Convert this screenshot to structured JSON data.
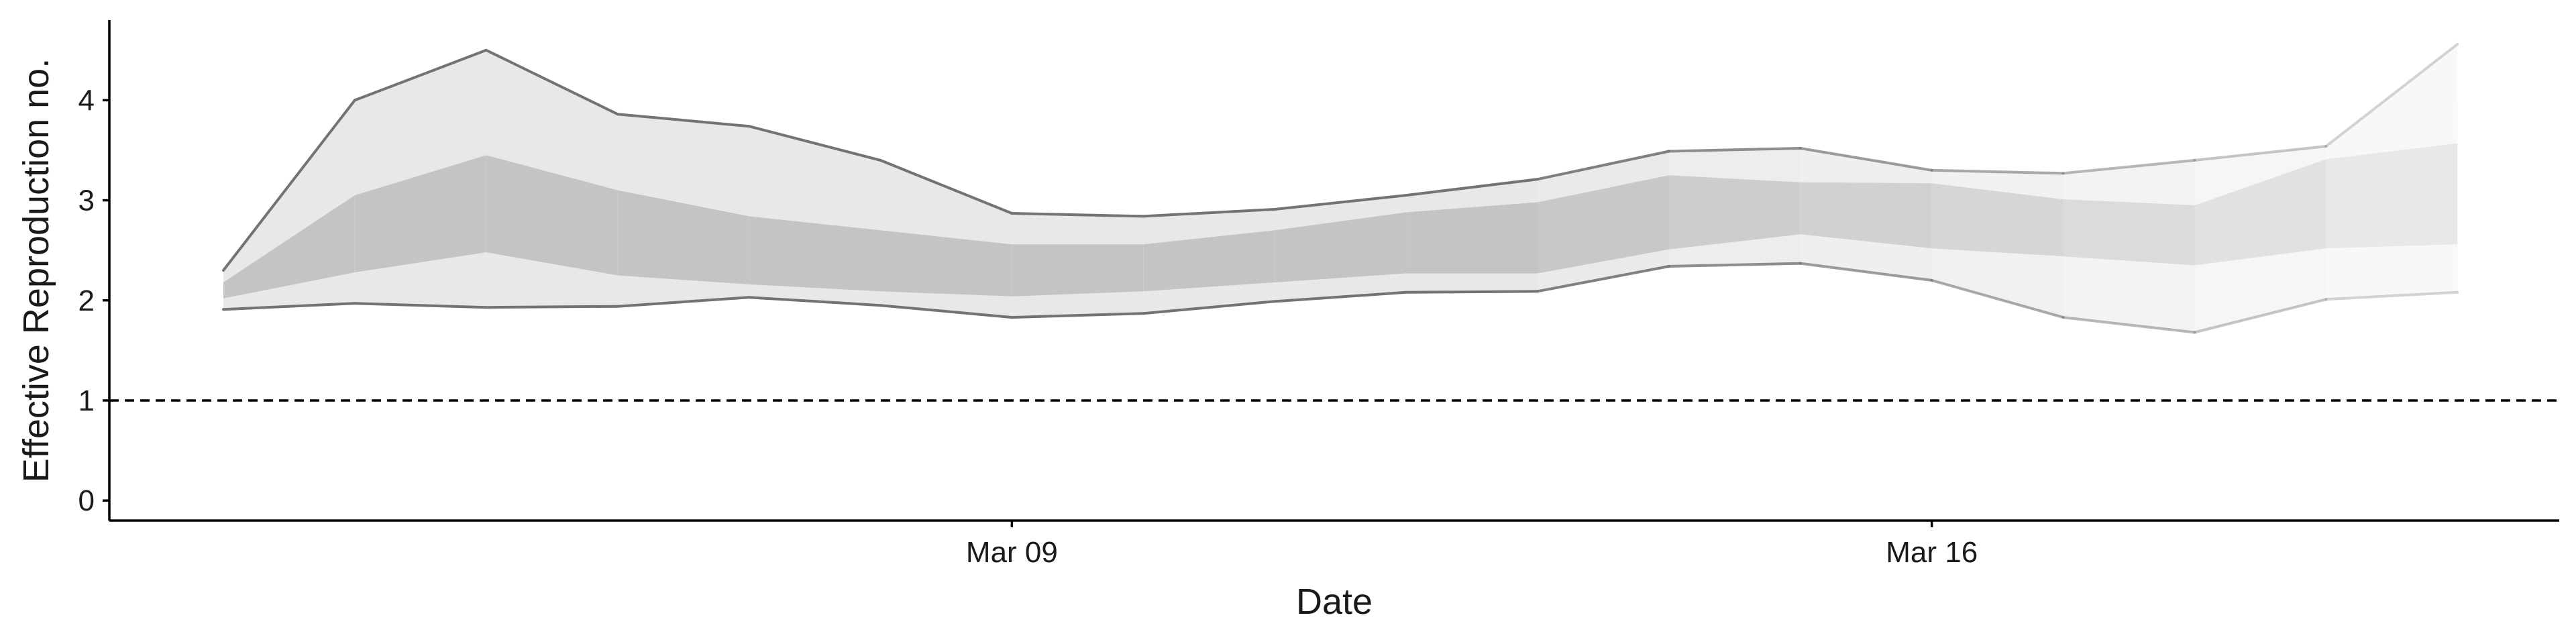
{
  "chart_data": {
    "type": "area",
    "title": "",
    "xlabel": "Date",
    "ylabel": "Effective Reproduction no.",
    "x": [
      "Mar 03",
      "Mar 04",
      "Mar 05",
      "Mar 06",
      "Mar 07",
      "Mar 08",
      "Mar 09",
      "Mar 10",
      "Mar 11",
      "Mar 12",
      "Mar 13",
      "Mar 14",
      "Mar 15",
      "Mar 16",
      "Mar 17",
      "Mar 18",
      "Mar 19",
      "Mar 20"
    ],
    "x_ticks": [
      "Mar 09",
      "Mar 16"
    ],
    "ylim": [
      -0.2,
      4.8
    ],
    "y_ticks": [
      0,
      1,
      2,
      3,
      4
    ],
    "reference_line": 1,
    "series": [
      {
        "role": "upper_90",
        "values": [
          2.3,
          4.0,
          4.5,
          3.86,
          3.74,
          3.4,
          2.87,
          2.84,
          2.91,
          3.05,
          3.21,
          3.49,
          3.52,
          3.3,
          3.27,
          3.4,
          3.54,
          4.56
        ]
      },
      {
        "role": "upper_50",
        "values": [
          2.18,
          3.05,
          3.45,
          3.1,
          2.84,
          2.7,
          2.56,
          2.56,
          2.7,
          2.88,
          2.98,
          3.25,
          3.18,
          3.17,
          3.01,
          2.95,
          3.41,
          3.57
        ]
      },
      {
        "role": "lower_50",
        "values": [
          2.02,
          2.28,
          2.48,
          2.25,
          2.16,
          2.09,
          2.04,
          2.09,
          2.18,
          2.27,
          2.27,
          2.51,
          2.66,
          2.52,
          2.44,
          2.35,
          2.52,
          2.56
        ]
      },
      {
        "role": "lower_90",
        "values": [
          1.91,
          1.97,
          1.93,
          1.94,
          2.03,
          1.95,
          1.83,
          1.87,
          1.99,
          2.08,
          2.09,
          2.34,
          2.37,
          2.2,
          1.83,
          1.68,
          2.01,
          2.08
        ]
      }
    ],
    "fade_from_index": 10,
    "grid": false,
    "legend": "none"
  },
  "colors": {
    "outer_band": "#e8e8e8",
    "inner_band": "#c4c4c4",
    "bound_line": "#737373",
    "axis": "#000000",
    "reference_line": "#000000",
    "text": "#1a1a1a"
  }
}
